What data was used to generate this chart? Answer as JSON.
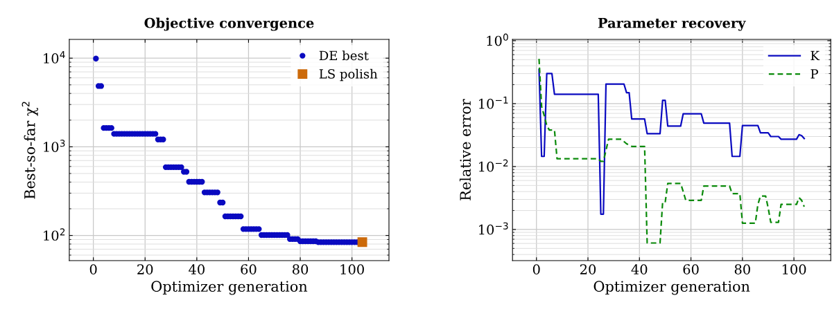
{
  "chart_data": [
    {
      "type": "scatter",
      "title": "Objective convergence",
      "xlabel": "Optimizer generation",
      "ylabel": "Best-so-far χ$^{2}$",
      "log": "y",
      "grid": true,
      "legend": "top right",
      "xlim": [
        -9.3,
        114.3
      ],
      "xticks": [
        0,
        20,
        40,
        60,
        80,
        100
      ],
      "ylim": [
        52,
        16300
      ],
      "yticks": [
        {
          "value": 100,
          "label": "10$^{2}$"
        },
        {
          "value": 1000,
          "label": "10$^{3}$"
        },
        {
          "value": 10000,
          "label": "10$^{4}$"
        }
      ],
      "series": [
        {
          "name": "DE best",
          "color": "#0a0ac0",
          "marker": "circle",
          "x": [
            1,
            2,
            3,
            4,
            5,
            6,
            7,
            8,
            9,
            10,
            11,
            12,
            13,
            14,
            15,
            16,
            17,
            18,
            19,
            20,
            21,
            22,
            23,
            24,
            25,
            26,
            27,
            28,
            29,
            30,
            31,
            32,
            33,
            34,
            35,
            36,
            37,
            38,
            39,
            40,
            41,
            42,
            43,
            44,
            45,
            46,
            47,
            48,
            49,
            50,
            51,
            52,
            53,
            54,
            55,
            56,
            57,
            58,
            59,
            60,
            61,
            62,
            63,
            64,
            65,
            66,
            67,
            68,
            69,
            70,
            71,
            72,
            73,
            74,
            75,
            76,
            77,
            78,
            79,
            80,
            81,
            82,
            83,
            84,
            85,
            86,
            87,
            88,
            89,
            90,
            91,
            92,
            93,
            94,
            95,
            96,
            97,
            98,
            99,
            100,
            101,
            102
          ],
          "values": [
            9900,
            4850,
            4850,
            1630,
            1630,
            1630,
            1630,
            1400,
            1400,
            1400,
            1400,
            1400,
            1400,
            1400,
            1400,
            1400,
            1400,
            1400,
            1400,
            1400,
            1400,
            1400,
            1400,
            1400,
            1210,
            1210,
            1210,
            589,
            589,
            589,
            589,
            589,
            589,
            589,
            523,
            523,
            403,
            403,
            403,
            403,
            403,
            403,
            306,
            306,
            306,
            306,
            306,
            306,
            235,
            235,
            164,
            164,
            164,
            164,
            164,
            164,
            164,
            118,
            118,
            118,
            118,
            118,
            118,
            118,
            101,
            101,
            101,
            101,
            101,
            101,
            101,
            101,
            101,
            101,
            101,
            91,
            91,
            91,
            91,
            86,
            86,
            86,
            86,
            86,
            86,
            86,
            84,
            84,
            84,
            84,
            84,
            84,
            84,
            84,
            84,
            84,
            84,
            84,
            84,
            84,
            84,
            84
          ]
        },
        {
          "name": "LS polish",
          "color": "#cc6a0a",
          "marker": "square",
          "x": [
            104
          ],
          "values": [
            84
          ]
        }
      ]
    },
    {
      "type": "line",
      "title": "Parameter recovery",
      "xlabel": "Optimizer generation",
      "ylabel": "Relative error",
      "log": "y",
      "grid": true,
      "legend": "top right",
      "xlim": [
        -9.3,
        114.3
      ],
      "xticks": [
        0,
        20,
        40,
        60,
        80,
        100
      ],
      "ylim": [
        0.00032,
        1.05
      ],
      "yticks": [
        {
          "value": 0.001,
          "label": "10$^{−3}$"
        },
        {
          "value": 0.01,
          "label": "10$^{−2}$"
        },
        {
          "value": 0.1,
          "label": "10$^{−1}$"
        },
        {
          "value": 1,
          "label": "10$^{0}$"
        }
      ],
      "x": [
        1,
        2,
        3,
        4,
        5,
        6,
        7,
        8,
        9,
        10,
        11,
        12,
        13,
        14,
        15,
        16,
        17,
        18,
        19,
        20,
        21,
        22,
        23,
        24,
        25,
        26,
        27,
        28,
        29,
        30,
        31,
        32,
        33,
        34,
        35,
        36,
        37,
        38,
        39,
        40,
        41,
        42,
        43,
        44,
        45,
        46,
        47,
        48,
        49,
        50,
        51,
        52,
        53,
        54,
        55,
        56,
        57,
        58,
        59,
        60,
        61,
        62,
        63,
        64,
        65,
        66,
        67,
        68,
        69,
        70,
        71,
        72,
        73,
        74,
        75,
        76,
        77,
        78,
        79,
        80,
        81,
        82,
        83,
        84,
        85,
        86,
        87,
        88,
        89,
        90,
        91,
        92,
        93,
        94,
        95,
        96,
        97,
        98,
        99,
        100,
        101,
        102,
        103,
        104
      ],
      "series": [
        {
          "name": "K",
          "color": "#0a0ac0",
          "line_style": "solid",
          "values": [
            0.35,
            0.0145,
            0.0145,
            0.3,
            0.3,
            0.3,
            0.141,
            0.141,
            0.141,
            0.141,
            0.141,
            0.141,
            0.141,
            0.141,
            0.141,
            0.141,
            0.141,
            0.141,
            0.141,
            0.141,
            0.141,
            0.141,
            0.141,
            0.141,
            0.00175,
            0.00175,
            0.204,
            0.204,
            0.204,
            0.204,
            0.204,
            0.204,
            0.204,
            0.204,
            0.149,
            0.149,
            0.057,
            0.057,
            0.057,
            0.057,
            0.057,
            0.057,
            0.0333,
            0.0333,
            0.0333,
            0.0333,
            0.0333,
            0.0333,
            0.113,
            0.113,
            0.0439,
            0.0439,
            0.0439,
            0.0439,
            0.0439,
            0.0439,
            0.069,
            0.069,
            0.069,
            0.069,
            0.069,
            0.069,
            0.069,
            0.069,
            0.049,
            0.049,
            0.049,
            0.049,
            0.049,
            0.049,
            0.049,
            0.049,
            0.049,
            0.049,
            0.049,
            0.0145,
            0.0145,
            0.0145,
            0.0145,
            0.0447,
            0.0447,
            0.0447,
            0.0447,
            0.0447,
            0.0447,
            0.0447,
            0.0344,
            0.0344,
            0.0344,
            0.0344,
            0.03,
            0.03,
            0.03,
            0.03,
            0.0272,
            0.0272,
            0.0272,
            0.0272,
            0.0272,
            0.0272,
            0.0272,
            0.0321,
            0.031,
            0.0279
          ]
        },
        {
          "name": "P",
          "color": "#0a8a0a",
          "line_style": "dashed",
          "values": [
            0.515,
            0.0897,
            0.065,
            0.045,
            0.038,
            0.038,
            0.038,
            0.0133,
            0.0133,
            0.0133,
            0.0133,
            0.0133,
            0.0133,
            0.0133,
            0.0133,
            0.0133,
            0.0133,
            0.0133,
            0.0133,
            0.0133,
            0.0133,
            0.0133,
            0.0133,
            0.0133,
            0.0121,
            0.0121,
            0.018,
            0.0272,
            0.0272,
            0.0272,
            0.0272,
            0.0272,
            0.0272,
            0.025,
            0.023,
            0.022,
            0.0209,
            0.0209,
            0.0209,
            0.0209,
            0.0209,
            0.0209,
            0.00061,
            0.00061,
            0.00061,
            0.00061,
            0.00061,
            0.00061,
            0.0027,
            0.0027,
            0.0054,
            0.0054,
            0.0054,
            0.0054,
            0.0054,
            0.0054,
            0.004,
            0.0029,
            0.0029,
            0.0029,
            0.0029,
            0.0029,
            0.0029,
            0.0029,
            0.0049,
            0.0049,
            0.0049,
            0.0049,
            0.0049,
            0.0049,
            0.0049,
            0.0049,
            0.0049,
            0.0049,
            0.0049,
            0.0037,
            0.0037,
            0.0037,
            0.0037,
            0.00126,
            0.00126,
            0.00126,
            0.00126,
            0.00126,
            0.00126,
            0.0025,
            0.0034,
            0.0034,
            0.0034,
            0.0022,
            0.0013,
            0.0013,
            0.0013,
            0.0013,
            0.0025,
            0.0025,
            0.0025,
            0.0025,
            0.0025,
            0.0025,
            0.0025,
            0.0032,
            0.0029,
            0.0023
          ]
        }
      ]
    }
  ]
}
